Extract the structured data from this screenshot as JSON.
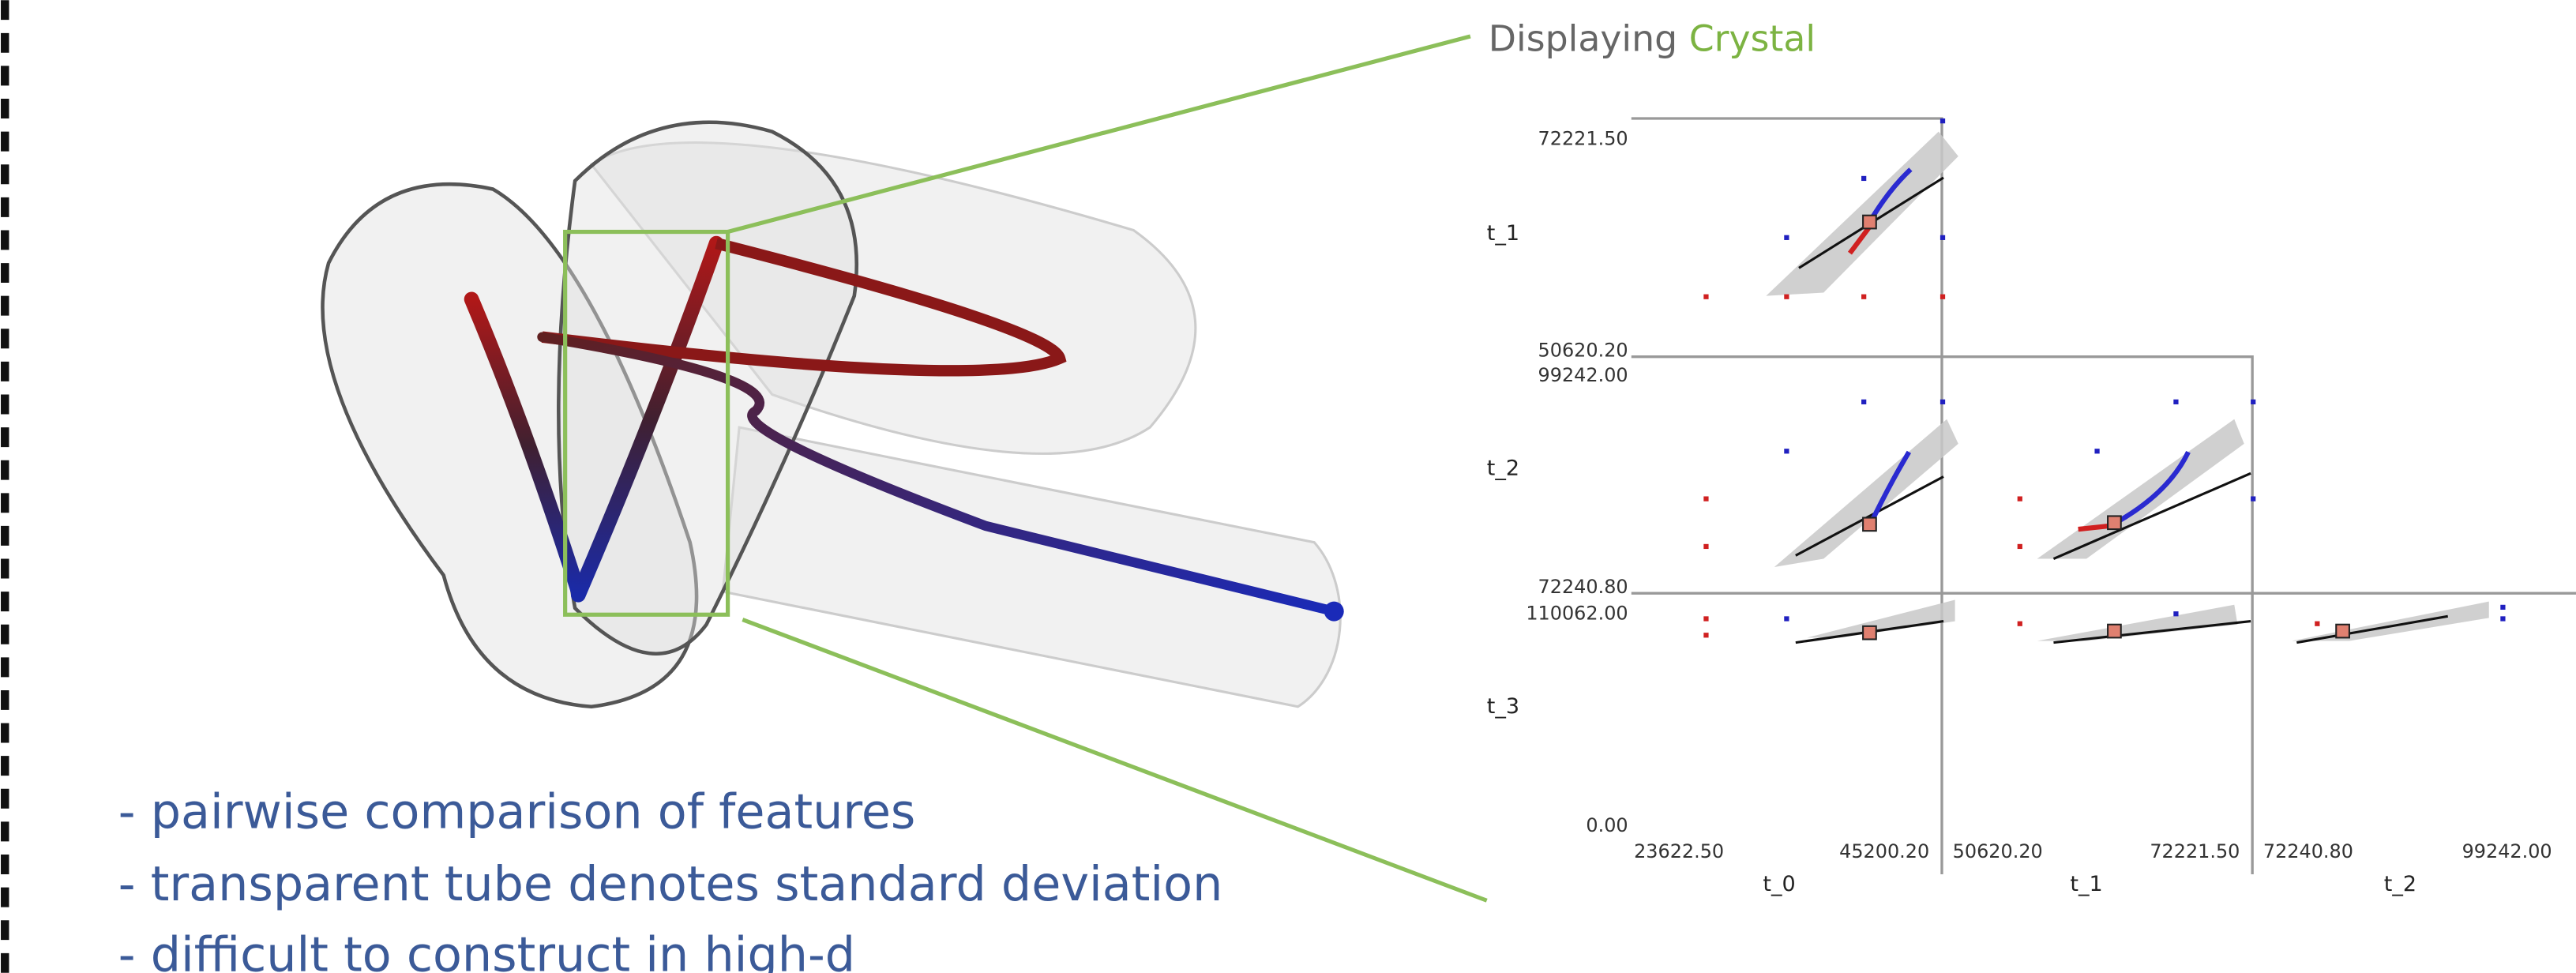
{
  "header": {
    "prefix": "Displaying",
    "highlight": "Crystal"
  },
  "bullets": [
    "- pairwise comparison of features",
    "- transparent tube denotes standard deviation",
    "- difficult to construct in high-d"
  ],
  "matrix": {
    "row_labels": [
      "t_1",
      "t_2",
      "t_3"
    ],
    "y_ticks": [
      {
        "top": "72221.50",
        "bottom": "50620.20"
      },
      {
        "top": "99242.00",
        "bottom": "72240.80"
      },
      {
        "top": "110062.00",
        "bottom": "0.00"
      }
    ],
    "column_labels": [
      "t_0",
      "t_1",
      "t_2"
    ],
    "x_ticks": [
      {
        "left": "23622.50",
        "right": "45200.20"
      },
      {
        "left": "50620.20",
        "right": "72221.50"
      },
      {
        "left": "72240.80",
        "right": "99242.00"
      }
    ]
  }
}
